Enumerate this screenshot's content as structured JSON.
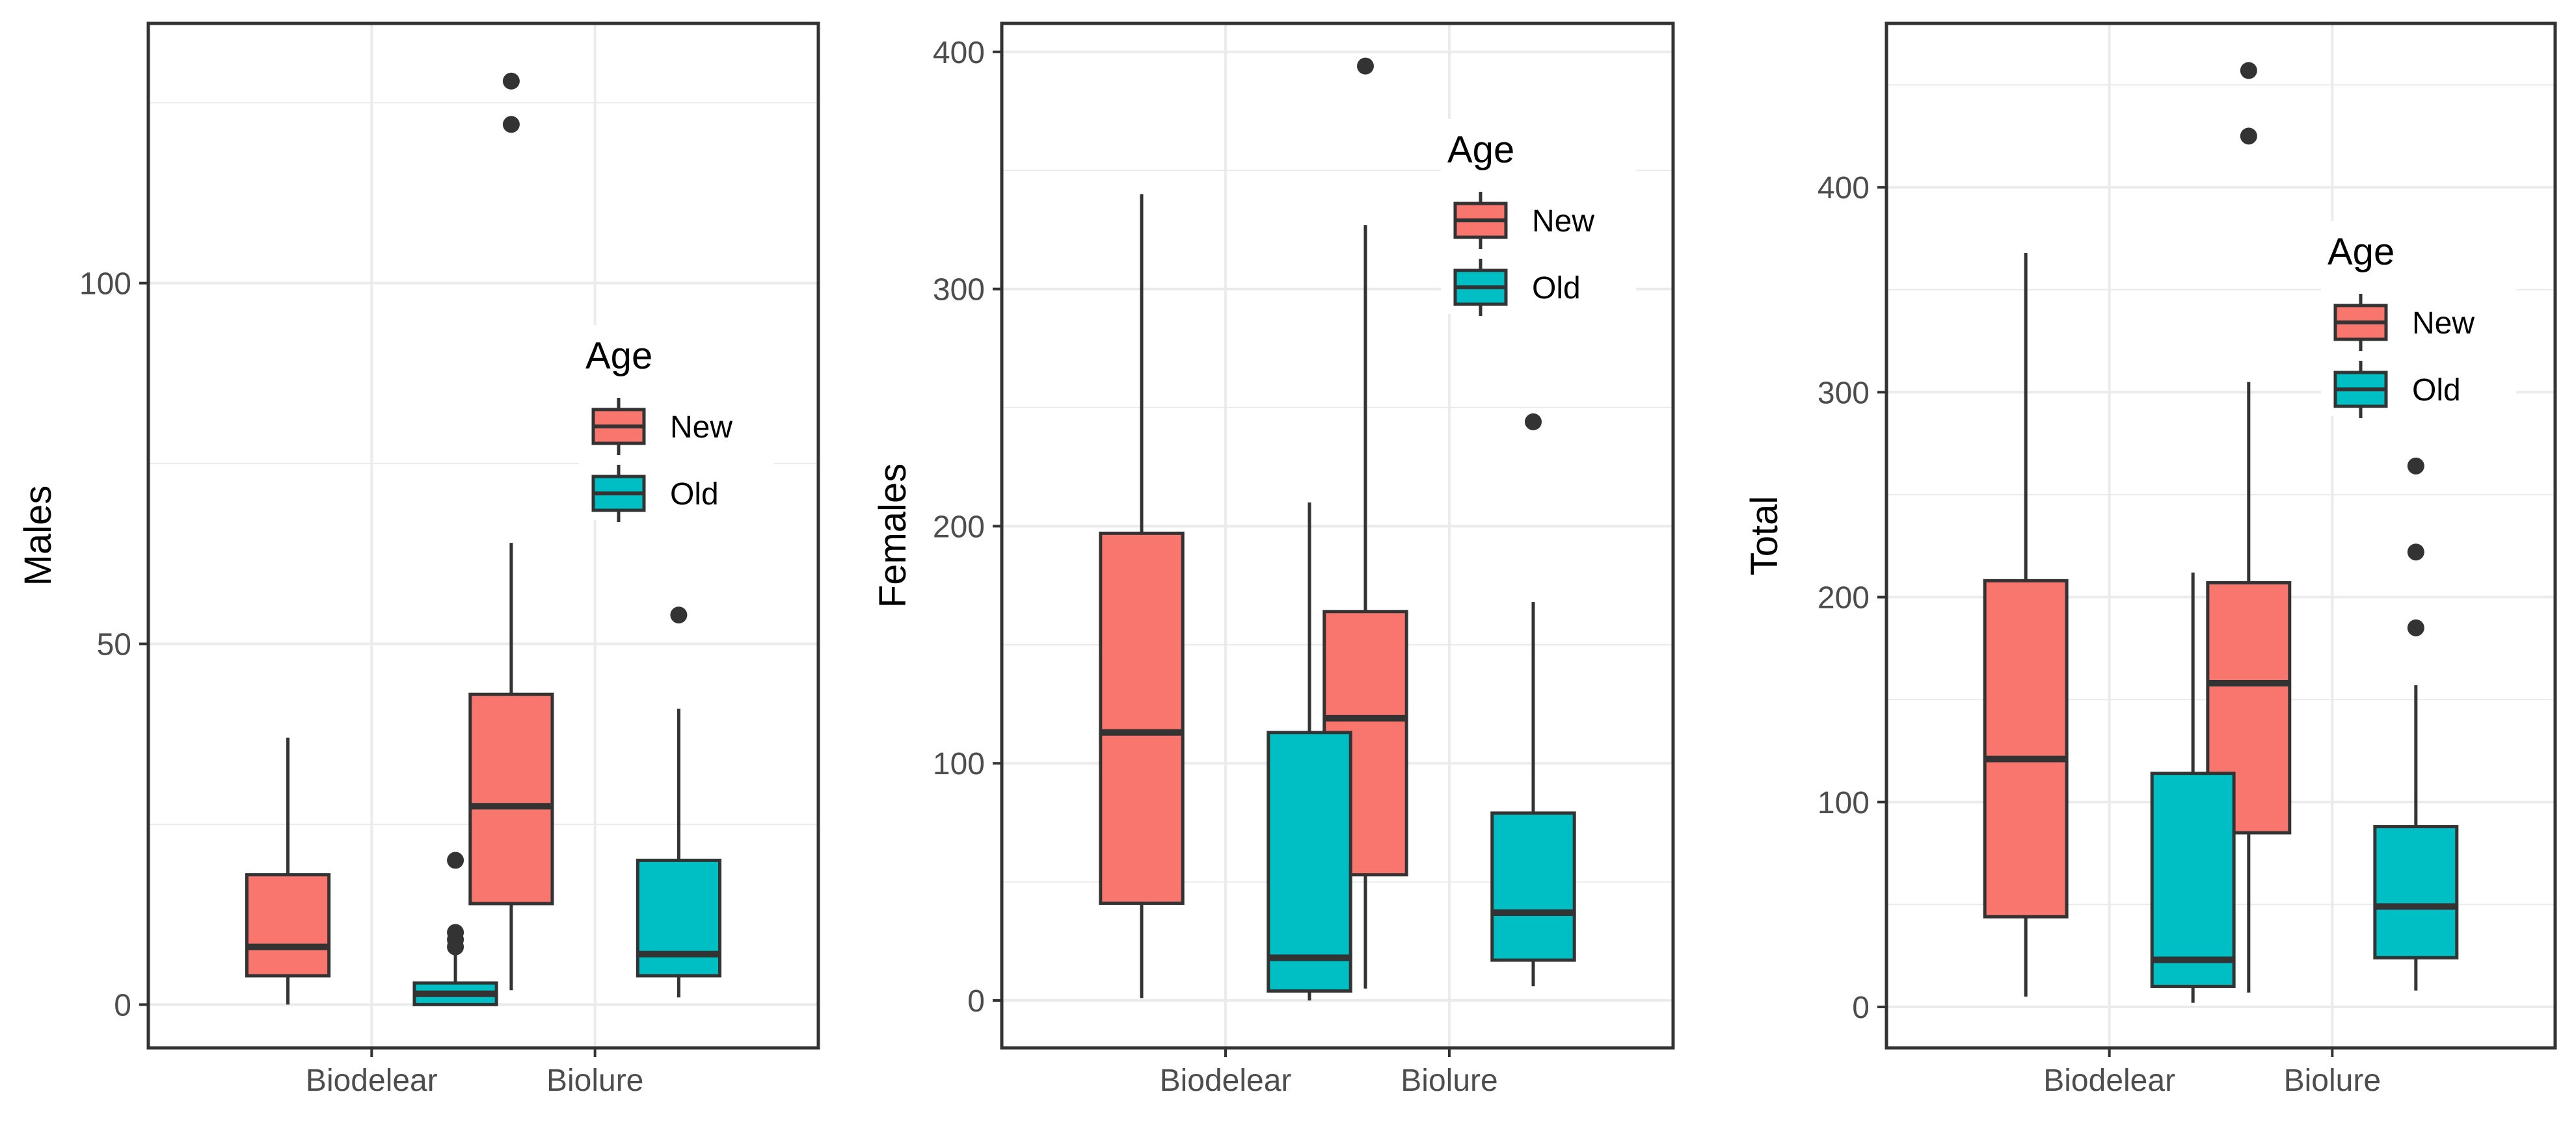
{
  "chart_data": [
    {
      "type": "boxplot",
      "ylabel": "Males",
      "xlabel": "",
      "categories": [
        "Biodelear",
        "Biolure"
      ],
      "ylim": [
        -6,
        136
      ],
      "yticks": [
        0,
        50,
        100
      ],
      "grid": true,
      "legend": {
        "title": "Age",
        "placement": "right-middle"
      },
      "series": [
        {
          "name": "New",
          "color": "#F8766D",
          "boxes": [
            {
              "min": 0,
              "q1": 4,
              "median": 8,
              "q3": 18,
              "max": 37,
              "outliers": []
            },
            {
              "min": 2,
              "q1": 14,
              "median": 27.5,
              "q3": 43,
              "max": 64,
              "outliers": [
                122,
                128
              ]
            }
          ]
        },
        {
          "name": "Old",
          "color": "#00BFC4",
          "boxes": [
            {
              "min": 0,
              "q1": 0,
              "median": 1.5,
              "q3": 3,
              "max": 7,
              "outliers": [
                8,
                9,
                10,
                20
              ]
            },
            {
              "min": 1,
              "q1": 4,
              "median": 7,
              "q3": 20,
              "max": 41,
              "outliers": [
                54
              ]
            }
          ]
        }
      ]
    },
    {
      "type": "boxplot",
      "ylabel": "Females",
      "xlabel": "",
      "categories": [
        "Biodelear",
        "Biolure"
      ],
      "ylim": [
        -20,
        412
      ],
      "yticks": [
        0,
        100,
        200,
        300,
        400
      ],
      "grid": true,
      "legend": {
        "title": "Age",
        "placement": "top-right"
      },
      "series": [
        {
          "name": "New",
          "color": "#F8766D",
          "boxes": [
            {
              "min": 1,
              "q1": 41,
              "median": 113,
              "q3": 197,
              "max": 340,
              "outliers": []
            },
            {
              "min": 5,
              "q1": 53,
              "median": 119,
              "q3": 164,
              "max": 327,
              "outliers": [
                394
              ]
            }
          ]
        },
        {
          "name": "Old",
          "color": "#00BFC4",
          "boxes": [
            {
              "min": 0,
              "q1": 4,
              "median": 18,
              "q3": 113,
              "max": 210,
              "outliers": []
            },
            {
              "min": 6,
              "q1": 17,
              "median": 37,
              "q3": 79,
              "max": 168,
              "outliers": [
                244
              ]
            }
          ]
        }
      ]
    },
    {
      "type": "boxplot",
      "ylabel": "Total",
      "xlabel": "",
      "categories": [
        "Biodelear",
        "Biolure"
      ],
      "ylim": [
        -20,
        480
      ],
      "yticks": [
        0,
        100,
        200,
        300,
        400
      ],
      "grid": true,
      "legend": {
        "title": "Age",
        "placement": "top-right"
      },
      "series": [
        {
          "name": "New",
          "color": "#F8766D",
          "boxes": [
            {
              "min": 5,
              "q1": 44,
              "median": 121,
              "q3": 208,
              "max": 368,
              "outliers": []
            },
            {
              "min": 7,
              "q1": 85,
              "median": 158,
              "q3": 207,
              "max": 305,
              "outliers": [
                425,
                457
              ]
            }
          ]
        },
        {
          "name": "Old",
          "color": "#00BFC4",
          "boxes": [
            {
              "min": 2,
              "q1": 10,
              "median": 23,
              "q3": 114,
              "max": 212,
              "outliers": []
            },
            {
              "min": 8,
              "q1": 24,
              "median": 49,
              "q3": 88,
              "max": 157,
              "outliers": [
                185,
                222,
                264
              ]
            }
          ]
        }
      ]
    }
  ]
}
